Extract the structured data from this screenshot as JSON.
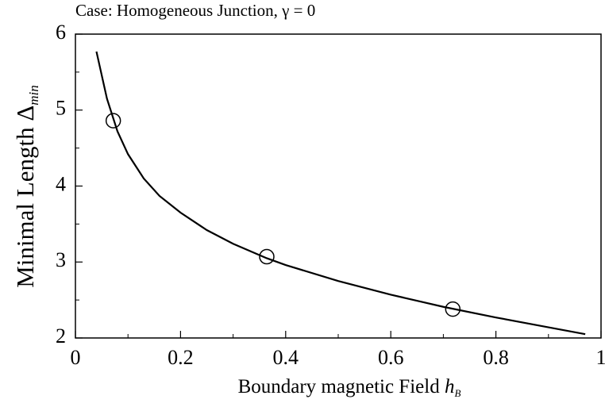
{
  "chart_data": {
    "type": "line",
    "title": "Case: Homogeneous Junction, γ = 0",
    "xlabel": {
      "text": "Boundary magnetic Field",
      "symbol": "h",
      "subscript": "B"
    },
    "ylabel": {
      "text": "Minimal Length",
      "symbol": "Δ",
      "subscript": "min"
    },
    "xlim": [
      0,
      1
    ],
    "ylim": [
      2,
      6
    ],
    "xticks": [
      0,
      0.2,
      0.4,
      0.6,
      0.8,
      1
    ],
    "yticks": [
      2,
      3,
      4,
      5,
      6
    ],
    "xminorticks": [
      0.1,
      0.3,
      0.5,
      0.7,
      0.9
    ],
    "yminorticks": [
      2.5,
      3.5,
      4.5,
      5.5
    ],
    "series": [
      {
        "kind": "line",
        "color": "#000000",
        "x": [
          0.04,
          0.06,
          0.08,
          0.1,
          0.13,
          0.16,
          0.2,
          0.25,
          0.3,
          0.364,
          0.4,
          0.5,
          0.6,
          0.7,
          0.8,
          0.9,
          0.97
        ],
        "values": [
          5.77,
          5.15,
          4.72,
          4.42,
          4.1,
          3.87,
          3.65,
          3.42,
          3.24,
          3.05,
          2.96,
          2.75,
          2.57,
          2.41,
          2.27,
          2.14,
          2.05
        ]
      },
      {
        "kind": "scatter",
        "color": "#000000",
        "x": [
          0.072,
          0.364,
          0.718
        ],
        "values": [
          4.86,
          3.07,
          2.38
        ]
      }
    ]
  }
}
